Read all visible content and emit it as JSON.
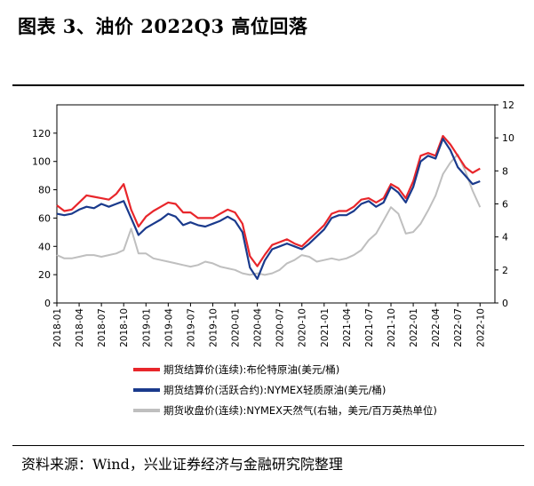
{
  "header": {
    "title": "图表 3、油价 2022Q3 高位回落"
  },
  "footer": {
    "source": "资料来源：Wind，兴业证券经济与金融研究院整理"
  },
  "colors": {
    "brent": "#e8262b",
    "wti": "#1a3a8c",
    "gas": "#bfbfbf",
    "axis": "#000000"
  },
  "chart_data": {
    "type": "line",
    "title": "油价 2022Q3 高位回落",
    "x_ticks": [
      "2018-01",
      "2018-04",
      "2018-07",
      "2018-10",
      "2019-01",
      "2019-04",
      "2019-07",
      "2019-10",
      "2020-01",
      "2020-04",
      "2020-07",
      "2020-10",
      "2021-01",
      "2021-04",
      "2021-07",
      "2021-10",
      "2022-01",
      "2022-04",
      "2022-07",
      "2022-10"
    ],
    "ylim_left": [
      0,
      140
    ],
    "yticks_left": [
      "0",
      "20",
      "40",
      "60",
      "80",
      "100",
      "120"
    ],
    "ylim_right": [
      0,
      12
    ],
    "yticks_right": [
      "0",
      "2",
      "4",
      "6",
      "8",
      "10",
      "12"
    ],
    "x_unit": "months since 2018-01",
    "series": [
      {
        "name": "期货结算价(连续):布伦特原油(美元/桶)",
        "axis": "left",
        "x": [
          0,
          1,
          2,
          3,
          4,
          5,
          6,
          7,
          8,
          9,
          10,
          11,
          12,
          13,
          14,
          15,
          16,
          17,
          18,
          19,
          20,
          21,
          22,
          23,
          24,
          25,
          26,
          27,
          28,
          29,
          30,
          31,
          32,
          33,
          34,
          35,
          36,
          37,
          38,
          39,
          40,
          41,
          42,
          43,
          44,
          45,
          46,
          47,
          48,
          49,
          50,
          51,
          52,
          53,
          54,
          55,
          56,
          57
        ],
        "values": [
          69,
          65,
          66,
          71,
          76,
          75,
          74,
          73,
          77,
          84,
          66,
          54,
          61,
          65,
          68,
          71,
          70,
          64,
          64,
          60,
          60,
          60,
          63,
          66,
          64,
          56,
          33,
          26,
          34,
          41,
          43,
          45,
          42,
          40,
          45,
          50,
          55,
          63,
          65,
          65,
          68,
          73,
          74,
          71,
          74,
          84,
          81,
          74,
          86,
          104,
          106,
          104,
          118,
          112,
          104,
          96,
          92,
          95
        ]
      },
      {
        "name": "期货结算价(活跃合约):NYMEX轻质原油(美元/桶)",
        "axis": "left",
        "x": [
          0,
          1,
          2,
          3,
          4,
          5,
          6,
          7,
          8,
          9,
          10,
          11,
          12,
          13,
          14,
          15,
          16,
          17,
          18,
          19,
          20,
          21,
          22,
          23,
          24,
          25,
          26,
          27,
          28,
          29,
          30,
          31,
          32,
          33,
          34,
          35,
          36,
          37,
          38,
          39,
          40,
          41,
          42,
          43,
          44,
          45,
          46,
          47,
          48,
          49,
          50,
          51,
          52,
          53,
          54,
          55,
          56,
          57
        ],
        "values": [
          63,
          62,
          63,
          66,
          68,
          67,
          70,
          68,
          70,
          72,
          60,
          48,
          53,
          56,
          59,
          63,
          61,
          55,
          57,
          55,
          54,
          56,
          58,
          61,
          58,
          50,
          25,
          17,
          30,
          38,
          40,
          42,
          40,
          38,
          42,
          47,
          52,
          60,
          62,
          62,
          65,
          70,
          72,
          68,
          71,
          82,
          78,
          71,
          82,
          100,
          104,
          102,
          116,
          108,
          96,
          90,
          84,
          86
        ]
      },
      {
        "name": "期货收盘价(连续):NYMEX天然气(右轴，美元/百万英热单位)",
        "axis": "right",
        "x": [
          0,
          1,
          2,
          3,
          4,
          5,
          6,
          7,
          8,
          9,
          10,
          11,
          12,
          13,
          14,
          15,
          16,
          17,
          18,
          19,
          20,
          21,
          22,
          23,
          24,
          25,
          26,
          27,
          28,
          29,
          30,
          31,
          32,
          33,
          34,
          35,
          36,
          37,
          38,
          39,
          40,
          41,
          42,
          43,
          44,
          45,
          46,
          47,
          48,
          49,
          50,
          51,
          52,
          53,
          54,
          55,
          56,
          57
        ],
        "values": [
          2.9,
          2.7,
          2.7,
          2.8,
          2.9,
          2.9,
          2.8,
          2.9,
          3.0,
          3.2,
          4.5,
          3.0,
          3.0,
          2.7,
          2.6,
          2.5,
          2.4,
          2.3,
          2.2,
          2.3,
          2.5,
          2.4,
          2.2,
          2.1,
          2.0,
          1.8,
          1.7,
          1.8,
          1.7,
          1.8,
          2.0,
          2.4,
          2.6,
          2.9,
          2.8,
          2.5,
          2.6,
          2.7,
          2.6,
          2.7,
          2.9,
          3.2,
          3.8,
          4.2,
          5.0,
          5.8,
          5.4,
          4.2,
          4.3,
          4.8,
          5.6,
          6.5,
          7.8,
          8.5,
          9.0,
          8.0,
          6.8,
          5.8
        ]
      }
    ]
  }
}
